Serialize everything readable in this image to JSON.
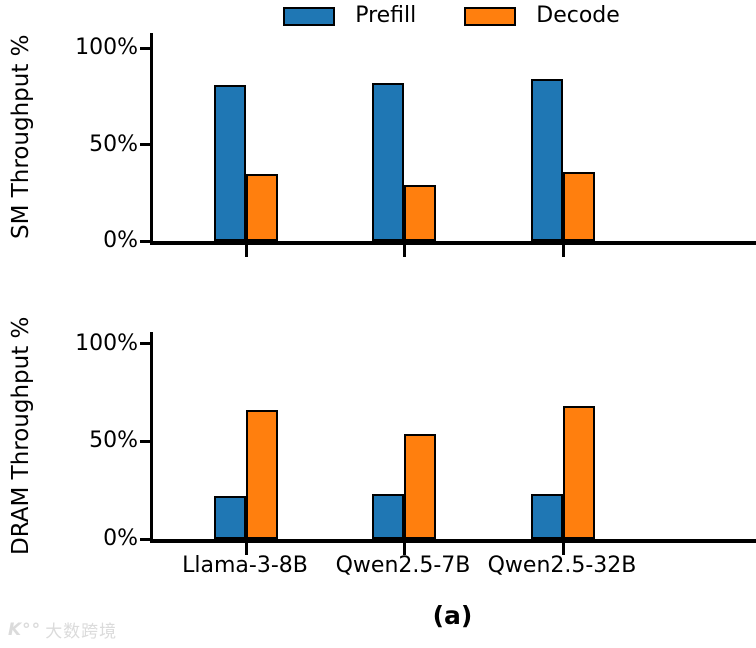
{
  "legend": {
    "items": [
      {
        "label": "Prefill",
        "color": "#1f77b4"
      },
      {
        "label": "Decode",
        "color": "#ff7f0e"
      }
    ]
  },
  "caption": {
    "label": "(a)"
  },
  "watermark": {
    "logo": "K°°",
    "text": "大数跨境"
  },
  "chart_data": [
    {
      "type": "bar",
      "title": "",
      "ylabel": "SM Throughput %",
      "xlabel": "",
      "categories": [
        "Llama-3-8B",
        "Qwen2.5-7B",
        "Qwen2.5-32B"
      ],
      "series": [
        {
          "name": "Prefill",
          "color": "#1f77b4",
          "values": [
            81,
            82,
            84
          ]
        },
        {
          "name": "Decode",
          "color": "#ff7f0e",
          "values": [
            35,
            29,
            36
          ]
        }
      ],
      "ylim": [
        0,
        108
      ],
      "yticks": [
        {
          "value": 0,
          "label": "0%"
        },
        {
          "value": 50,
          "label": "50%"
        },
        {
          "value": 100,
          "label": "100%"
        }
      ],
      "grid": false,
      "legend_position": "top-center",
      "show_xticklabels": false
    },
    {
      "type": "bar",
      "title": "",
      "ylabel": "DRAM Throughput %",
      "xlabel": "",
      "categories": [
        "Llama-3-8B",
        "Qwen2.5-7B",
        "Qwen2.5-32B"
      ],
      "series": [
        {
          "name": "Prefill",
          "color": "#1f77b4",
          "values": [
            22,
            23,
            23
          ]
        },
        {
          "name": "Decode",
          "color": "#ff7f0e",
          "values": [
            66,
            54,
            68
          ]
        }
      ],
      "ylim": [
        0,
        106
      ],
      "yticks": [
        {
          "value": 0,
          "label": "0%"
        },
        {
          "value": 50,
          "label": "50%"
        },
        {
          "value": 100,
          "label": "100%"
        }
      ],
      "grid": false,
      "show_xticklabels": true
    }
  ]
}
